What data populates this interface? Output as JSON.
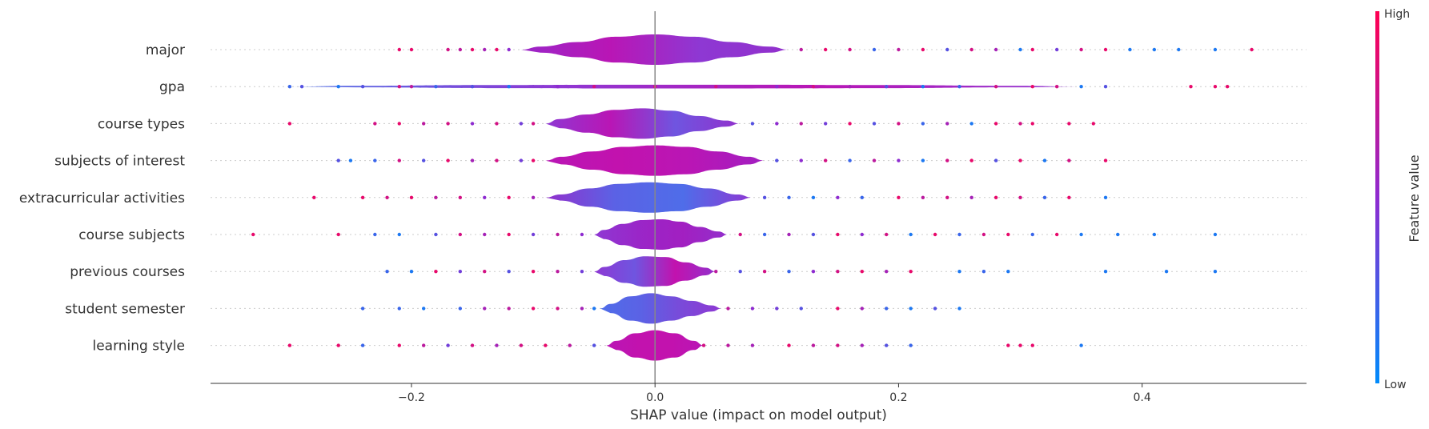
{
  "chart_data": {
    "type": "violin",
    "xlabel": "SHAP value (impact on model output)",
    "xlim": [
      -0.365,
      0.535
    ],
    "xticks": [
      -0.2,
      0.0,
      0.2,
      0.4
    ],
    "xtick_labels": [
      "−0.2",
      "0.0",
      "0.2",
      "0.4"
    ],
    "colorbar": {
      "title": "Feature value",
      "high_label": "High",
      "low_label": "Low",
      "high_color": "#ff0052",
      "mid_color": "#8e2bd0",
      "low_color": "#008bfb"
    },
    "features": [
      {
        "name": "major",
        "core": [
          -0.11,
          0.11
        ],
        "shape": [
          0.2,
          0.5,
          0.85,
          1.0,
          0.85,
          0.5,
          0.2
        ],
        "core_colors": [
          "#9a26c8",
          "#b916b5",
          "#8e38d3",
          "#9230cc"
        ],
        "points": [
          [
            -0.21,
            0.9
          ],
          [
            -0.2,
            0.9
          ],
          [
            -0.17,
            0.8
          ],
          [
            -0.16,
            0.7
          ],
          [
            -0.15,
            0.9
          ],
          [
            -0.14,
            0.6
          ],
          [
            -0.13,
            0.9
          ],
          [
            -0.12,
            0.5
          ],
          [
            0.12,
            0.7
          ],
          [
            0.14,
            0.9
          ],
          [
            0.16,
            0.8
          ],
          [
            0.18,
            0.2
          ],
          [
            0.2,
            0.7
          ],
          [
            0.22,
            0.9
          ],
          [
            0.24,
            0.3
          ],
          [
            0.26,
            0.8
          ],
          [
            0.28,
            0.6
          ],
          [
            0.3,
            0.1
          ],
          [
            0.31,
            0.9
          ],
          [
            0.33,
            0.4
          ],
          [
            0.35,
            0.8
          ],
          [
            0.37,
            0.9
          ],
          [
            0.39,
            0.1
          ],
          [
            0.41,
            0.1
          ],
          [
            0.43,
            0.1
          ],
          [
            0.46,
            0.1
          ],
          [
            0.49,
            0.9
          ]
        ]
      },
      {
        "name": "gpa",
        "core": [
          -0.3,
          0.35
        ],
        "shape": [
          0.05,
          0.1,
          0.12,
          0.12,
          0.1,
          0.05
        ],
        "core_colors": [
          "#4e72e8",
          "#8e38d3",
          "#b916b5",
          "#8e38d3"
        ],
        "points": [
          [
            -0.3,
            0.2
          ],
          [
            -0.29,
            0.3
          ],
          [
            -0.26,
            0.1
          ],
          [
            -0.24,
            0.3
          ],
          [
            -0.21,
            0.8
          ],
          [
            -0.2,
            0.7
          ],
          [
            -0.18,
            0.2
          ],
          [
            -0.15,
            0.3
          ],
          [
            -0.12,
            0.1
          ],
          [
            -0.08,
            0.5
          ],
          [
            -0.05,
            0.8
          ],
          [
            0.0,
            0.9
          ],
          [
            0.05,
            0.8
          ],
          [
            0.1,
            0.5
          ],
          [
            0.13,
            0.8
          ],
          [
            0.16,
            0.6
          ],
          [
            0.19,
            0.3
          ],
          [
            0.22,
            0.1
          ],
          [
            0.25,
            0.2
          ],
          [
            0.28,
            0.8
          ],
          [
            0.31,
            0.9
          ],
          [
            0.33,
            0.8
          ],
          [
            0.35,
            0.1
          ],
          [
            0.37,
            0.3
          ],
          [
            0.44,
            0.9
          ],
          [
            0.46,
            0.9
          ],
          [
            0.47,
            0.9
          ]
        ]
      },
      {
        "name": "course types",
        "core": [
          -0.09,
          0.07
        ],
        "shape": [
          0.3,
          0.6,
          0.9,
          1.0,
          0.85,
          0.5,
          0.2
        ],
        "core_colors": [
          "#8e38d3",
          "#b916b5",
          "#6f55e0",
          "#9230cc"
        ],
        "points": [
          [
            -0.3,
            0.9
          ],
          [
            -0.23,
            0.8
          ],
          [
            -0.21,
            0.9
          ],
          [
            -0.19,
            0.7
          ],
          [
            -0.17,
            0.8
          ],
          [
            -0.15,
            0.5
          ],
          [
            -0.13,
            0.8
          ],
          [
            -0.11,
            0.4
          ],
          [
            -0.1,
            0.8
          ],
          [
            0.08,
            0.3
          ],
          [
            0.1,
            0.5
          ],
          [
            0.12,
            0.7
          ],
          [
            0.14,
            0.4
          ],
          [
            0.16,
            0.9
          ],
          [
            0.18,
            0.3
          ],
          [
            0.2,
            0.8
          ],
          [
            0.22,
            0.2
          ],
          [
            0.24,
            0.6
          ],
          [
            0.26,
            0.1
          ],
          [
            0.28,
            0.9
          ],
          [
            0.3,
            0.8
          ],
          [
            0.31,
            0.9
          ],
          [
            0.34,
            0.9
          ],
          [
            0.36,
            0.9
          ]
        ]
      },
      {
        "name": "subjects of interest",
        "core": [
          -0.09,
          0.09
        ],
        "shape": [
          0.25,
          0.6,
          0.9,
          1.0,
          0.9,
          0.6,
          0.25
        ],
        "core_colors": [
          "#b916b5",
          "#c212ae",
          "#b916b5",
          "#a21fc1"
        ],
        "points": [
          [
            -0.26,
            0.3
          ],
          [
            -0.25,
            0.1
          ],
          [
            -0.23,
            0.2
          ],
          [
            -0.21,
            0.8
          ],
          [
            -0.19,
            0.3
          ],
          [
            -0.17,
            0.9
          ],
          [
            -0.15,
            0.6
          ],
          [
            -0.13,
            0.8
          ],
          [
            -0.11,
            0.4
          ],
          [
            -0.1,
            0.9
          ],
          [
            0.1,
            0.3
          ],
          [
            0.12,
            0.5
          ],
          [
            0.14,
            0.8
          ],
          [
            0.16,
            0.2
          ],
          [
            0.18,
            0.7
          ],
          [
            0.2,
            0.5
          ],
          [
            0.22,
            0.1
          ],
          [
            0.24,
            0.8
          ],
          [
            0.26,
            0.9
          ],
          [
            0.28,
            0.3
          ],
          [
            0.3,
            0.9
          ],
          [
            0.32,
            0.1
          ],
          [
            0.34,
            0.8
          ],
          [
            0.37,
            0.9
          ]
        ]
      },
      {
        "name": "extracurricular activities",
        "core": [
          -0.09,
          0.08
        ],
        "shape": [
          0.2,
          0.6,
          0.9,
          1.0,
          0.9,
          0.6,
          0.2
        ],
        "core_colors": [
          "#9230cc",
          "#5b62e5",
          "#4f6de9",
          "#8e38d3"
        ],
        "points": [
          [
            -0.28,
            0.9
          ],
          [
            -0.24,
            0.9
          ],
          [
            -0.22,
            0.8
          ],
          [
            -0.2,
            0.9
          ],
          [
            -0.18,
            0.7
          ],
          [
            -0.16,
            0.8
          ],
          [
            -0.14,
            0.5
          ],
          [
            -0.12,
            0.9
          ],
          [
            -0.1,
            0.6
          ],
          [
            0.09,
            0.3
          ],
          [
            0.11,
            0.2
          ],
          [
            0.13,
            0.1
          ],
          [
            0.15,
            0.5
          ],
          [
            0.17,
            0.2
          ],
          [
            0.2,
            0.9
          ],
          [
            0.22,
            0.7
          ],
          [
            0.24,
            0.8
          ],
          [
            0.26,
            0.6
          ],
          [
            0.28,
            0.9
          ],
          [
            0.3,
            0.8
          ],
          [
            0.32,
            0.2
          ],
          [
            0.34,
            0.9
          ],
          [
            0.37,
            0.1
          ]
        ]
      },
      {
        "name": "course subjects",
        "core": [
          -0.05,
          0.06
        ],
        "shape": [
          0.3,
          0.7,
          0.95,
          1.0,
          0.85,
          0.5,
          0.2
        ],
        "core_colors": [
          "#8e38d3",
          "#9a26c8",
          "#a21fc1",
          "#9230cc"
        ],
        "points": [
          [
            -0.33,
            0.9
          ],
          [
            -0.26,
            0.9
          ],
          [
            -0.23,
            0.2
          ],
          [
            -0.21,
            0.1
          ],
          [
            -0.18,
            0.3
          ],
          [
            -0.16,
            0.8
          ],
          [
            -0.14,
            0.6
          ],
          [
            -0.12,
            0.9
          ],
          [
            -0.1,
            0.4
          ],
          [
            -0.08,
            0.7
          ],
          [
            -0.06,
            0.5
          ],
          [
            0.07,
            0.8
          ],
          [
            0.09,
            0.2
          ],
          [
            0.11,
            0.6
          ],
          [
            0.13,
            0.3
          ],
          [
            0.15,
            0.9
          ],
          [
            0.17,
            0.5
          ],
          [
            0.19,
            0.8
          ],
          [
            0.21,
            0.1
          ],
          [
            0.23,
            0.9
          ],
          [
            0.25,
            0.2
          ],
          [
            0.27,
            0.8
          ],
          [
            0.29,
            0.9
          ],
          [
            0.31,
            0.2
          ],
          [
            0.33,
            0.9
          ],
          [
            0.35,
            0.1
          ],
          [
            0.38,
            0.1
          ],
          [
            0.41,
            0.1
          ],
          [
            0.46,
            0.1
          ]
        ]
      },
      {
        "name": "previous courses",
        "core": [
          -0.05,
          0.05
        ],
        "shape": [
          0.3,
          0.75,
          1.0,
          0.95,
          0.6,
          0.25
        ],
        "core_colors": [
          "#8e38d3",
          "#6f55e0",
          "#c212ae",
          "#9230cc"
        ],
        "points": [
          [
            -0.22,
            0.2
          ],
          [
            -0.2,
            0.1
          ],
          [
            -0.18,
            0.9
          ],
          [
            -0.16,
            0.4
          ],
          [
            -0.14,
            0.8
          ],
          [
            -0.12,
            0.3
          ],
          [
            -0.1,
            0.9
          ],
          [
            -0.08,
            0.7
          ],
          [
            -0.06,
            0.4
          ],
          [
            0.05,
            0.7
          ],
          [
            0.07,
            0.3
          ],
          [
            0.09,
            0.8
          ],
          [
            0.11,
            0.2
          ],
          [
            0.13,
            0.5
          ],
          [
            0.15,
            0.8
          ],
          [
            0.17,
            0.9
          ],
          [
            0.19,
            0.6
          ],
          [
            0.21,
            0.9
          ],
          [
            0.25,
            0.1
          ],
          [
            0.27,
            0.2
          ],
          [
            0.29,
            0.1
          ],
          [
            0.37,
            0.1
          ],
          [
            0.42,
            0.1
          ],
          [
            0.46,
            0.1
          ]
        ]
      },
      {
        "name": "student semester",
        "core": [
          -0.045,
          0.055
        ],
        "shape": [
          0.3,
          0.8,
          1.0,
          0.8,
          0.5,
          0.2
        ],
        "core_colors": [
          "#4f6de9",
          "#5b62e5",
          "#7a4ad9",
          "#8e38d3"
        ],
        "points": [
          [
            -0.24,
            0.2
          ],
          [
            -0.21,
            0.2
          ],
          [
            -0.19,
            0.1
          ],
          [
            -0.16,
            0.2
          ],
          [
            -0.14,
            0.6
          ],
          [
            -0.12,
            0.7
          ],
          [
            -0.1,
            0.9
          ],
          [
            -0.08,
            0.8
          ],
          [
            -0.06,
            0.6
          ],
          [
            -0.05,
            0.1
          ],
          [
            0.06,
            0.7
          ],
          [
            0.08,
            0.5
          ],
          [
            0.1,
            0.4
          ],
          [
            0.12,
            0.3
          ],
          [
            0.15,
            0.9
          ],
          [
            0.17,
            0.6
          ],
          [
            0.19,
            0.2
          ],
          [
            0.21,
            0.1
          ],
          [
            0.23,
            0.3
          ],
          [
            0.25,
            0.1
          ]
        ]
      },
      {
        "name": "learning style",
        "core": [
          -0.04,
          0.04
        ],
        "shape": [
          0.3,
          0.8,
          1.0,
          0.8,
          0.3
        ],
        "core_colors": [
          "#b916b5",
          "#c212ae",
          "#c212ae",
          "#b916b5"
        ],
        "points": [
          [
            -0.3,
            0.9
          ],
          [
            -0.26,
            0.9
          ],
          [
            -0.24,
            0.2
          ],
          [
            -0.21,
            0.9
          ],
          [
            -0.19,
            0.7
          ],
          [
            -0.17,
            0.4
          ],
          [
            -0.15,
            0.8
          ],
          [
            -0.13,
            0.6
          ],
          [
            -0.11,
            0.8
          ],
          [
            -0.09,
            0.9
          ],
          [
            -0.07,
            0.7
          ],
          [
            -0.05,
            0.3
          ],
          [
            0.04,
            0.8
          ],
          [
            0.06,
            0.7
          ],
          [
            0.08,
            0.6
          ],
          [
            0.11,
            0.9
          ],
          [
            0.13,
            0.7
          ],
          [
            0.15,
            0.8
          ],
          [
            0.17,
            0.6
          ],
          [
            0.19,
            0.3
          ],
          [
            0.21,
            0.2
          ],
          [
            0.29,
            0.9
          ],
          [
            0.3,
            0.9
          ],
          [
            0.31,
            0.9
          ],
          [
            0.35,
            0.1
          ]
        ]
      }
    ]
  }
}
